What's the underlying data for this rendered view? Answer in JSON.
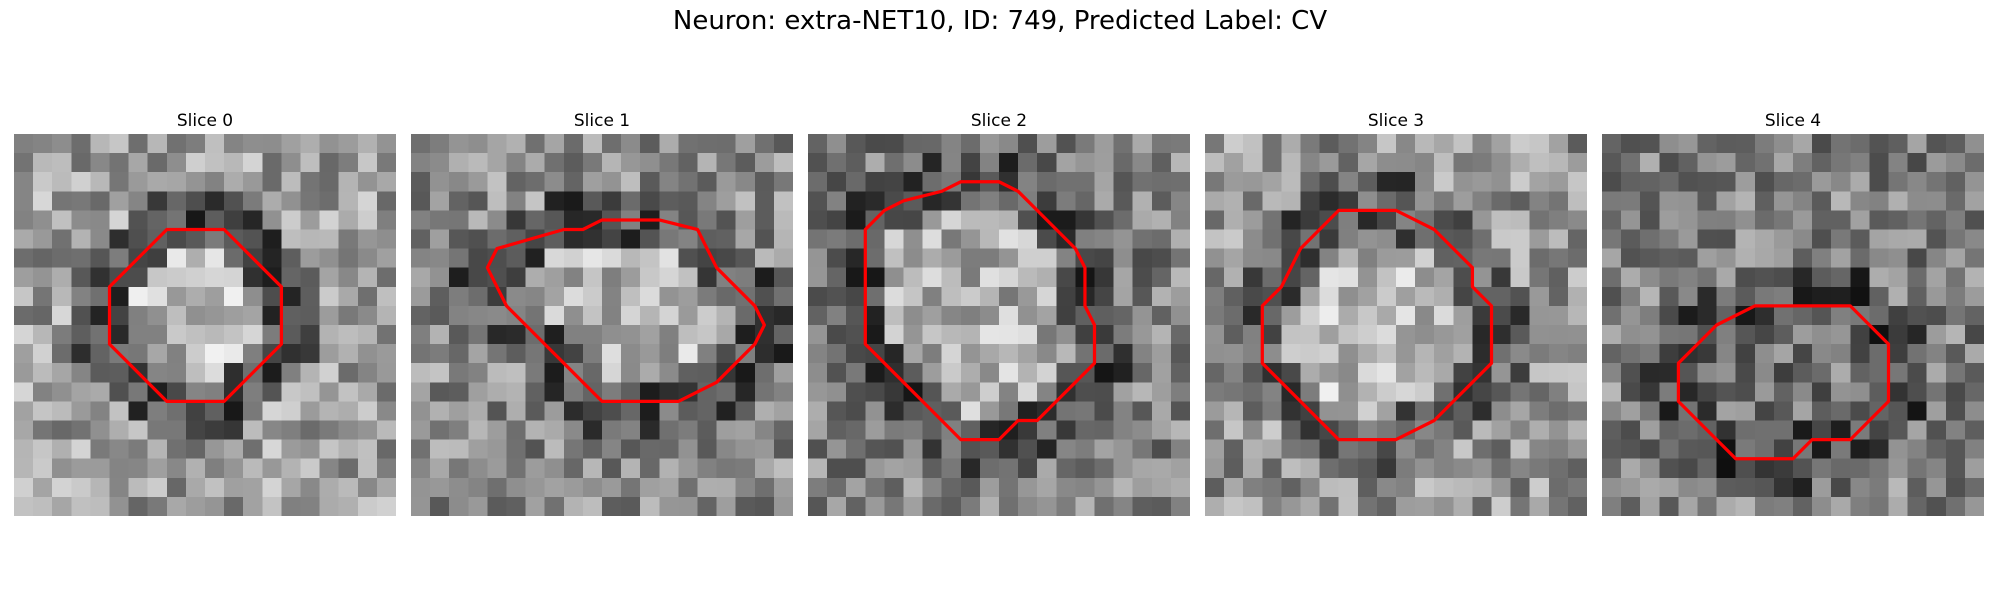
{
  "figure": {
    "title": "Neuron: extra-NET10, ID: 749, Predicted Label: CV"
  },
  "panels": [
    {
      "title": "Slice 0",
      "seed": 11,
      "base": 0.62,
      "ring_mean": 0.3,
      "center_mean": 0.72,
      "outline": [
        [
          8,
          5
        ],
        [
          11,
          5
        ],
        [
          14,
          8
        ],
        [
          14,
          11
        ],
        [
          11,
          14
        ],
        [
          8,
          14
        ],
        [
          5,
          11
        ],
        [
          5,
          8
        ]
      ]
    },
    {
      "title": "Slice 1",
      "seed": 23,
      "base": 0.55,
      "ring_mean": 0.32,
      "center_mean": 0.7,
      "outline": [
        [
          8,
          5
        ],
        [
          9,
          5
        ],
        [
          10,
          4.5
        ],
        [
          13,
          4.5
        ],
        [
          15,
          5
        ],
        [
          15.5,
          6
        ],
        [
          16,
          7
        ],
        [
          17,
          8
        ],
        [
          18,
          9
        ],
        [
          18.5,
          10
        ],
        [
          18,
          11
        ],
        [
          17,
          12
        ],
        [
          16,
          13
        ],
        [
          14,
          14
        ],
        [
          10,
          14
        ],
        [
          9,
          13
        ],
        [
          8,
          12
        ],
        [
          7,
          11
        ],
        [
          6,
          10
        ],
        [
          5,
          9
        ],
        [
          4.5,
          8
        ],
        [
          4,
          7
        ],
        [
          4.5,
          6
        ]
      ]
    },
    {
      "title": "Slice 2",
      "seed": 37,
      "base": 0.5,
      "ring_mean": 0.3,
      "center_mean": 0.68,
      "outline": [
        [
          7,
          3
        ],
        [
          8,
          2.5
        ],
        [
          10,
          2.5
        ],
        [
          11,
          3
        ],
        [
          12,
          4
        ],
        [
          13,
          5
        ],
        [
          14,
          6
        ],
        [
          14.5,
          7
        ],
        [
          14.5,
          9
        ],
        [
          15,
          10
        ],
        [
          15,
          12
        ],
        [
          14,
          13
        ],
        [
          13,
          14
        ],
        [
          12,
          15
        ],
        [
          11,
          15
        ],
        [
          10,
          16
        ],
        [
          8,
          16
        ],
        [
          7,
          15
        ],
        [
          6,
          14
        ],
        [
          5,
          13
        ],
        [
          4,
          12
        ],
        [
          3,
          11
        ],
        [
          3,
          5
        ],
        [
          4,
          4
        ],
        [
          5,
          3.5
        ]
      ]
    },
    {
      "title": "Slice 3",
      "seed": 41,
      "base": 0.58,
      "ring_mean": 0.36,
      "center_mean": 0.72,
      "outline": [
        [
          7,
          4
        ],
        [
          10,
          4
        ],
        [
          11,
          4.5
        ],
        [
          12,
          5
        ],
        [
          13,
          6
        ],
        [
          14,
          7
        ],
        [
          14,
          8
        ],
        [
          15,
          9
        ],
        [
          15,
          12
        ],
        [
          14,
          13
        ],
        [
          13,
          14
        ],
        [
          12,
          15
        ],
        [
          10,
          16
        ],
        [
          7,
          16
        ],
        [
          6,
          15
        ],
        [
          5,
          14
        ],
        [
          4,
          13
        ],
        [
          3,
          12
        ],
        [
          3,
          9
        ],
        [
          4,
          8
        ],
        [
          4.5,
          7
        ],
        [
          5,
          6
        ],
        [
          6,
          5
        ]
      ]
    },
    {
      "title": "Slice 4",
      "seed": 53,
      "base": 0.5,
      "ring_mean": 0.28,
      "center_mean": 0.45,
      "outline": [
        [
          8,
          9
        ],
        [
          13,
          9
        ],
        [
          14,
          10
        ],
        [
          15,
          11
        ],
        [
          15,
          14
        ],
        [
          13,
          16
        ],
        [
          11,
          16
        ],
        [
          10,
          17
        ],
        [
          7,
          17
        ],
        [
          6,
          16
        ],
        [
          5,
          15
        ],
        [
          4,
          14
        ],
        [
          4,
          12
        ],
        [
          5,
          11
        ],
        [
          6,
          10
        ]
      ]
    }
  ],
  "colors": {
    "outline": "#ff0000"
  }
}
